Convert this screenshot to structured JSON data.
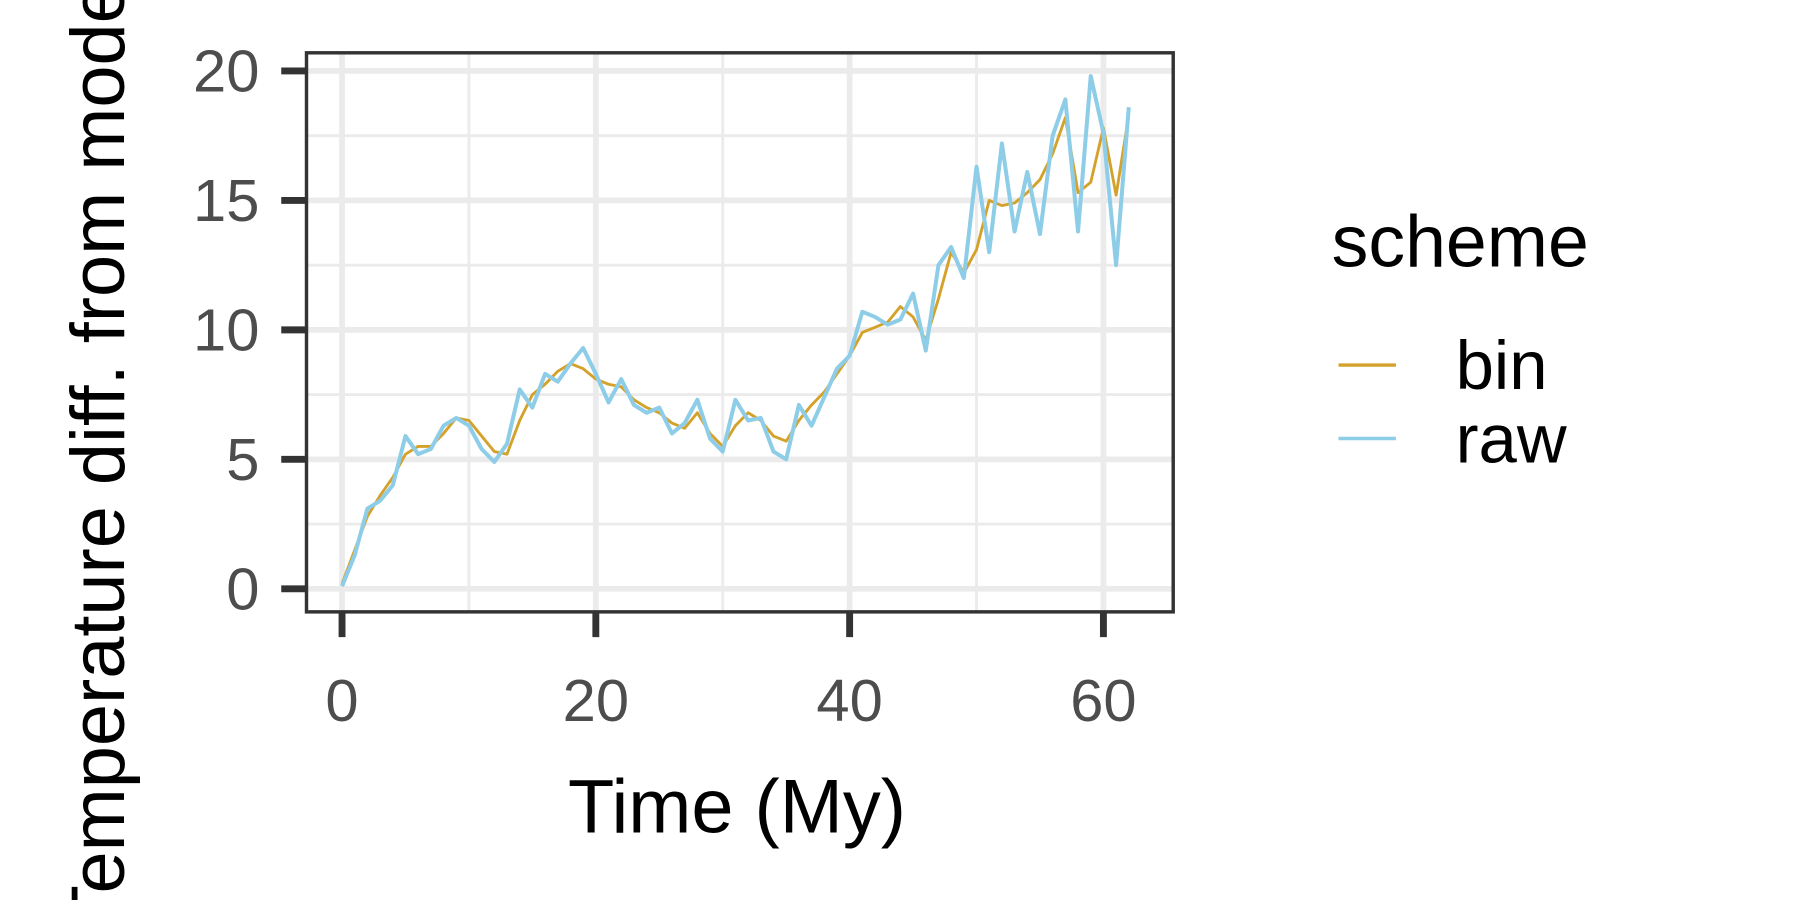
{
  "chart_data": {
    "type": "line",
    "xlabel": "Time (My)",
    "ylabel": "Temperature diff. from modern (°C)",
    "legend_title": "scheme",
    "legend": "right",
    "grid": true,
    "xlim": [
      -2.8,
      65.5
    ],
    "xticks": [
      0,
      20,
      40,
      60
    ],
    "ylim": [
      -0.89,
      20.7
    ],
    "yticks": [
      0,
      5,
      10,
      15,
      20
    ],
    "x": [
      0,
      1,
      2,
      3,
      4,
      5,
      6,
      7,
      8,
      9,
      10,
      11,
      12,
      13,
      14,
      15,
      16,
      17,
      18,
      19,
      20,
      21,
      22,
      23,
      24,
      25,
      26,
      27,
      28,
      29,
      30,
      31,
      32,
      33,
      34,
      35,
      36,
      37,
      38,
      39,
      40,
      41,
      42,
      43,
      44,
      45,
      46,
      47,
      48,
      49,
      50,
      51,
      52,
      53,
      54,
      55,
      56,
      57,
      58,
      59,
      60,
      61,
      62
    ],
    "series": [
      {
        "name": "bin",
        "color": "#D4A22A",
        "values": [
          0.2,
          1.5,
          2.8,
          3.6,
          4.3,
          5.2,
          5.5,
          5.5,
          6.0,
          6.6,
          6.5,
          5.9,
          5.3,
          5.2,
          6.5,
          7.5,
          7.9,
          8.4,
          8.7,
          8.5,
          8.1,
          7.9,
          7.8,
          7.3,
          7.0,
          6.8,
          6.4,
          6.2,
          6.8,
          6.0,
          5.5,
          6.3,
          6.8,
          6.5,
          5.9,
          5.7,
          6.5,
          7.1,
          7.6,
          8.3,
          9.0,
          9.9,
          10.1,
          10.3,
          10.9,
          10.5,
          9.6,
          11.2,
          13.0,
          12.2,
          13.1,
          15.0,
          14.8,
          14.9,
          15.3,
          15.8,
          16.8,
          18.2,
          15.3,
          15.7,
          17.8,
          15.2,
          18.3
        ]
      },
      {
        "name": "raw",
        "color": "#8ECDE8",
        "values": [
          0.1,
          1.3,
          3.1,
          3.4,
          4.0,
          5.9,
          5.2,
          5.4,
          6.3,
          6.6,
          6.3,
          5.4,
          4.9,
          5.6,
          7.7,
          7.0,
          8.3,
          8.0,
          8.7,
          9.3,
          8.3,
          7.2,
          8.1,
          7.1,
          6.8,
          7.0,
          6.0,
          6.4,
          7.3,
          5.8,
          5.3,
          7.3,
          6.5,
          6.6,
          5.3,
          5.0,
          7.1,
          6.3,
          7.4,
          8.5,
          9.0,
          10.7,
          10.5,
          10.2,
          10.4,
          11.4,
          9.2,
          12.5,
          13.2,
          12.0,
          16.3,
          13.0,
          17.2,
          13.8,
          16.1,
          13.7,
          17.5,
          18.9,
          13.8,
          19.8,
          17.6,
          12.5,
          18.6
        ]
      }
    ]
  }
}
